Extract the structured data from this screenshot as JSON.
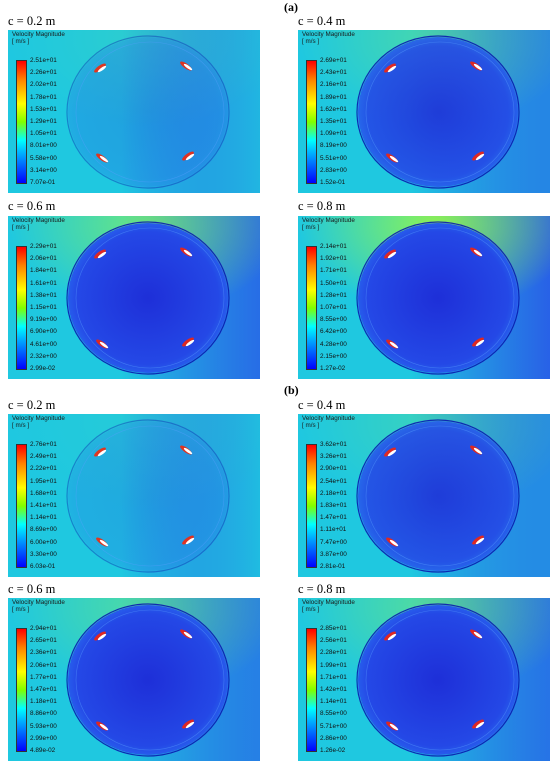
{
  "groups": [
    {
      "label": "(a)",
      "panels": [
        {
          "caption": "c = 0.2 m",
          "legend_title": "Velocity Magnitude",
          "legend_unit": "[ m/s ]",
          "ticks": [
            "2.51e+01",
            "2.26e+01",
            "2.02e+01",
            "1.78e+01",
            "1.53e+01",
            "1.29e+01",
            "1.05e+01",
            "8.01e+00",
            "5.58e+00",
            "3.14e+00",
            "7.07e-01"
          ]
        },
        {
          "caption": "c = 0.4 m",
          "legend_title": "Velocity Magnitude",
          "legend_unit": "[ m/s ]",
          "ticks": [
            "2.69e+01",
            "2.43e+01",
            "2.16e+01",
            "1.89e+01",
            "1.62e+01",
            "1.35e+01",
            "1.09e+01",
            "8.19e+00",
            "5.51e+00",
            "2.83e+00",
            "1.52e-01"
          ]
        },
        {
          "caption": "c = 0.6 m",
          "legend_title": "Velocity Magnitude",
          "legend_unit": "[ m/s ]",
          "ticks": [
            "2.29e+01",
            "2.06e+01",
            "1.84e+01",
            "1.61e+01",
            "1.38e+01",
            "1.15e+01",
            "9.19e+00",
            "6.90e+00",
            "4.61e+00",
            "2.32e+00",
            "2.99e-02"
          ]
        },
        {
          "caption": "c = 0.8 m",
          "legend_title": "Velocity Magnitude",
          "legend_unit": "[ m/s ]",
          "ticks": [
            "2.14e+01",
            "1.92e+01",
            "1.71e+01",
            "1.50e+01",
            "1.28e+01",
            "1.07e+01",
            "8.55e+00",
            "6.42e+00",
            "4.28e+00",
            "2.15e+00",
            "1.27e-02"
          ]
        }
      ]
    },
    {
      "label": "(b)",
      "panels": [
        {
          "caption": "c = 0.2 m",
          "legend_title": "Velocity Magnitude",
          "legend_unit": "[ m/s ]",
          "ticks": [
            "2.76e+01",
            "2.49e+01",
            "2.22e+01",
            "1.95e+01",
            "1.68e+01",
            "1.41e+01",
            "1.14e+01",
            "8.69e+00",
            "6.00e+00",
            "3.30e+00",
            "6.03e-01"
          ]
        },
        {
          "caption": "c = 0.4 m",
          "legend_title": "Velocity Magnitude",
          "legend_unit": "[ m/s ]",
          "ticks": [
            "3.62e+01",
            "3.26e+01",
            "2.90e+01",
            "2.54e+01",
            "2.18e+01",
            "1.83e+01",
            "1.47e+01",
            "1.11e+01",
            "7.47e+00",
            "3.87e+00",
            "2.81e-01"
          ]
        },
        {
          "caption": "c = 0.6 m",
          "legend_title": "Velocity Magnitude",
          "legend_unit": "[ m/s ]",
          "ticks": [
            "2.94e+01",
            "2.65e+01",
            "2.36e+01",
            "2.06e+01",
            "1.77e+01",
            "1.47e+01",
            "1.18e+01",
            "8.86e+00",
            "5.93e+00",
            "2.99e+00",
            "4.89e-02"
          ]
        },
        {
          "caption": "c = 0.8 m",
          "legend_title": "Velocity Magnitude",
          "legend_unit": "[ m/s ]",
          "ticks": [
            "2.85e+01",
            "2.56e+01",
            "2.28e+01",
            "1.99e+01",
            "1.71e+01",
            "1.42e+01",
            "1.14e+01",
            "8.55e+00",
            "5.71e+00",
            "2.86e+00",
            "1.26e-02"
          ]
        }
      ]
    }
  ],
  "colors": {
    "freestream": "#1fc8e0",
    "wake": "#2a4fe8",
    "interior": "#1e2fd8",
    "high": "#ff2200",
    "mid": "#a8ff30"
  }
}
